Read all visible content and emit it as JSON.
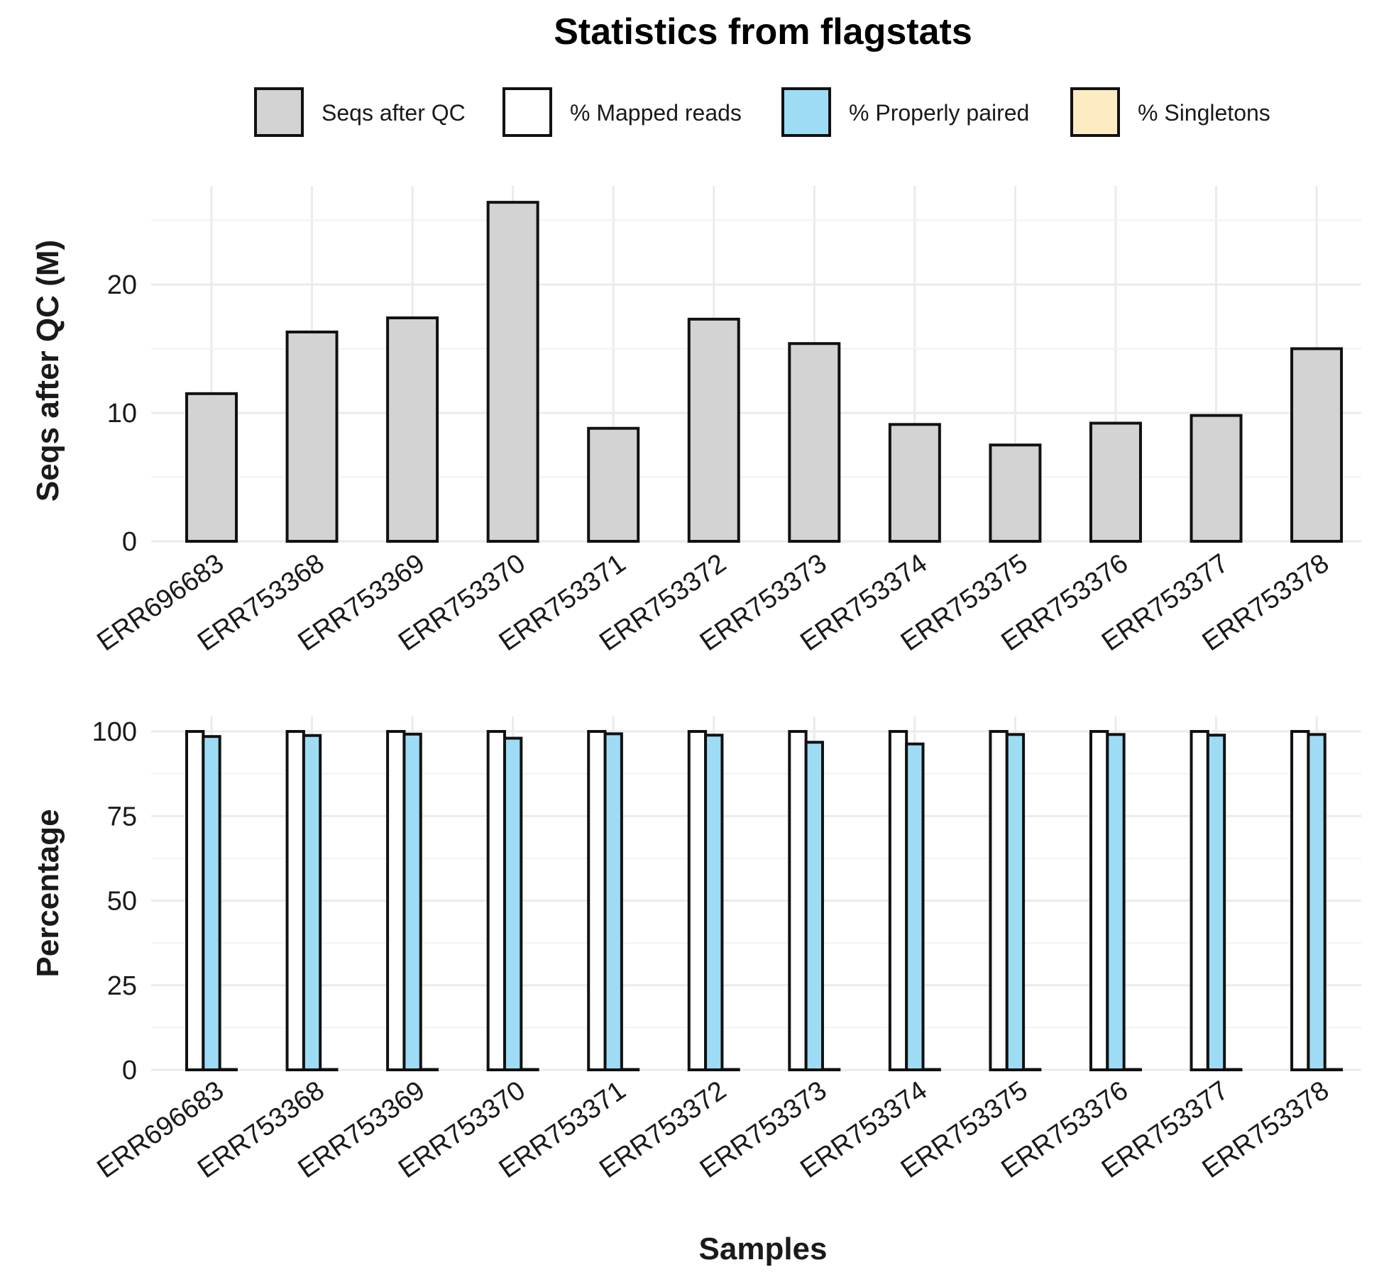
{
  "chart_data": {
    "type": "bar",
    "title": "Statistics from flagstats",
    "xlabel": "Samples",
    "legend_position": "top",
    "legend": [
      {
        "name": "Seqs after QC",
        "color": "#d3d3d3"
      },
      {
        "name": "% Mapped reads",
        "color": "#ffffff"
      },
      {
        "name": "% Properly paired",
        "color": "#9edcf5"
      },
      {
        "name": "% Singletons",
        "color": "#fdecc1"
      }
    ],
    "categories": [
      "ERR696683",
      "ERR753368",
      "ERR753369",
      "ERR753370",
      "ERR753371",
      "ERR753372",
      "ERR753373",
      "ERR753374",
      "ERR753375",
      "ERR753376",
      "ERR753377",
      "ERR753378"
    ],
    "panels": [
      {
        "type": "bar",
        "ylabel": "Seqs after QC (M)",
        "ylim": [
          0,
          27
        ],
        "yticks": [
          0,
          10,
          20
        ],
        "series": [
          {
            "name": "Seqs after QC",
            "color": "#d3d3d3",
            "values": [
              11.5,
              16.3,
              17.4,
              26.4,
              8.8,
              17.3,
              15.4,
              9.1,
              7.5,
              9.2,
              9.8,
              15.0
            ]
          }
        ]
      },
      {
        "type": "bar",
        "ylabel": "Percentage",
        "ylim": [
          0,
          100
        ],
        "yticks": [
          0,
          25,
          50,
          75,
          100
        ],
        "series": [
          {
            "name": "% Mapped reads",
            "color": "#ffffff",
            "values": [
              100,
              100,
              100,
              100,
              100,
              100,
              100,
              100,
              100,
              100,
              100,
              100
            ]
          },
          {
            "name": "% Properly paired",
            "color": "#9edcf5",
            "values": [
              98.5,
              98.8,
              99.2,
              98.0,
              99.3,
              98.9,
              96.8,
              96.3,
              99.1,
              99.1,
              98.9,
              99.1
            ]
          },
          {
            "name": "% Singletons",
            "color": "#fdecc1",
            "values": [
              0.1,
              0.1,
              0.1,
              0.1,
              0.1,
              0.1,
              0.1,
              0.1,
              0.1,
              0.1,
              0.1,
              0.1
            ]
          }
        ]
      }
    ]
  }
}
